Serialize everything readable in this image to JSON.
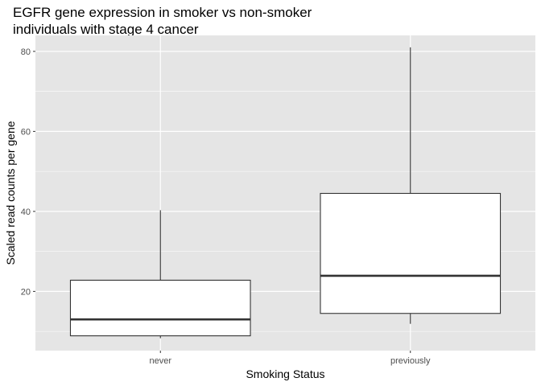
{
  "chart_data": {
    "type": "boxplot",
    "title_lines": [
      "EGFR gene expression in smoker vs non-smoker",
      "individuals with stage 4 cancer"
    ],
    "xlabel": "Smoking Status",
    "ylabel": "Scaled read counts per gene",
    "categories": [
      "never",
      "previously"
    ],
    "boxes": [
      {
        "category": "never",
        "whisker_low": 8.3,
        "q1": 8.9,
        "median": 13.0,
        "q3": 22.8,
        "whisker_high": 40.3
      },
      {
        "category": "previously",
        "whisker_low": 11.9,
        "q1": 14.5,
        "median": 23.9,
        "q3": 44.5,
        "whisker_high": 81.0
      }
    ],
    "ylim": [
      5.2,
      84.0
    ],
    "y_ticks": [
      20,
      40,
      60,
      80
    ],
    "y_minor_ticks": [
      10,
      30,
      50,
      70
    ],
    "grid": true,
    "colors": {
      "panel": "#e5e5e5",
      "grid": "#ffffff",
      "box_fill": "#ffffff",
      "box_stroke": "#333333"
    }
  }
}
